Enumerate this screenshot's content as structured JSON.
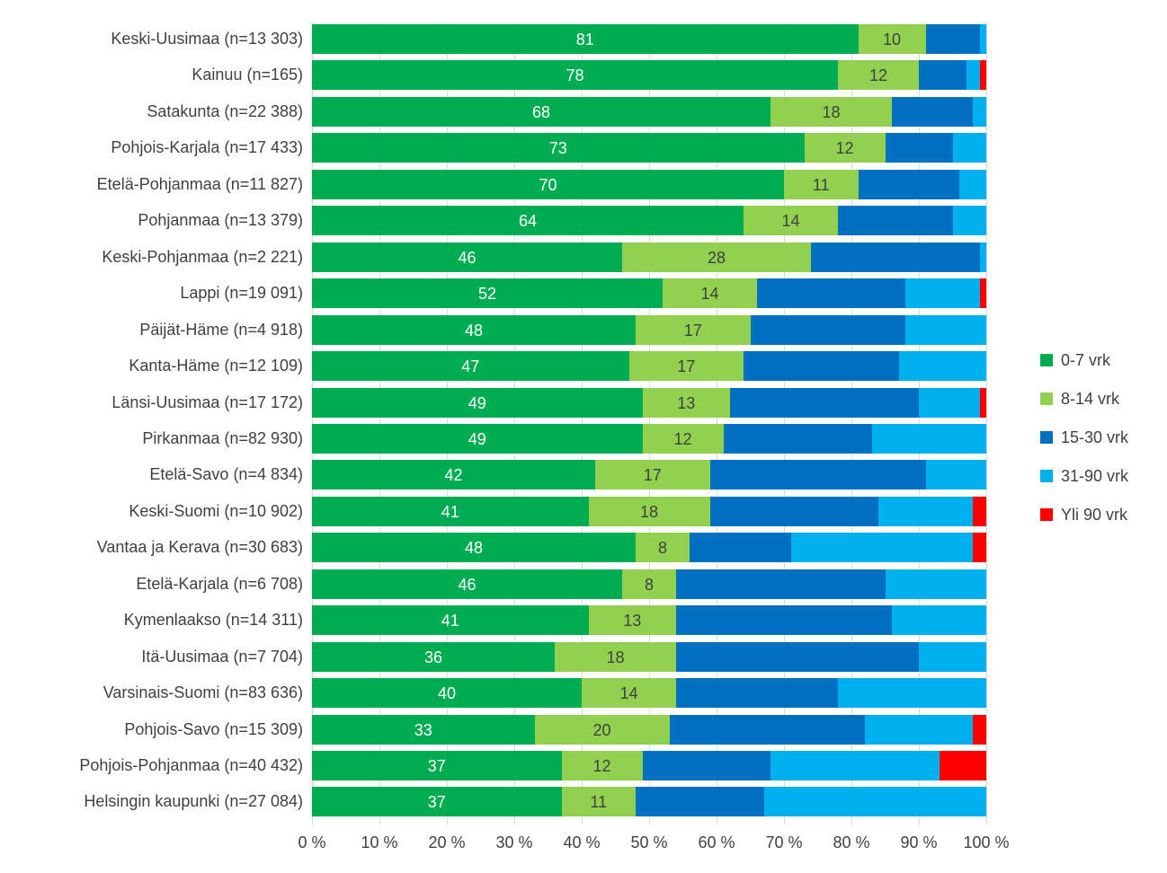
{
  "chart_data": {
    "type": "bar",
    "variant": "horizontal-stacked-100",
    "title": "",
    "xlabel": "",
    "ylabel": "",
    "x_axis": {
      "min": 0,
      "max": 100,
      "tick_labels": [
        "0 %",
        "10 %",
        "20 %",
        "30 %",
        "40 %",
        "50 %",
        "60 %",
        "70 %",
        "80 %",
        "90 %",
        "100 %"
      ]
    },
    "grid": true,
    "legend_position": "right",
    "categories": [
      "Keski-Uusimaa (n=13 303)",
      "Kainuu (n=165)",
      "Satakunta (n=22 388)",
      "Pohjois-Karjala (n=17 433)",
      "Etelä-Pohjanmaa (n=11 827)",
      "Pohjanmaa (n=13 379)",
      "Keski-Pohjanmaa (n=2 221)",
      "Lappi (n=19 091)",
      "Päijät-Häme (n=4 918)",
      "Kanta-Häme (n=12 109)",
      "Länsi-Uusimaa (n=17 172)",
      "Pirkanmaa (n=82 930)",
      "Etelä-Savo (n=4 834)",
      "Keski-Suomi (n=10 902)",
      "Vantaa ja Kerava (n=30 683)",
      "Etelä-Karjala (n=6 708)",
      "Kymenlaakso (n=14 311)",
      "Itä-Uusimaa (n=7 704)",
      "Varsinais-Suomi (n=83 636)",
      "Pohjois-Savo (n=15 309)",
      "Pohjois-Pohjanmaa (n=40 432)",
      "Helsingin kaupunki (n=27 084)"
    ],
    "series": [
      {
        "name": "0-7 vrk",
        "color": "#00AC52",
        "label_color": "#ffffff",
        "labels_shown": true,
        "values": [
          81,
          78,
          68,
          73,
          70,
          64,
          46,
          52,
          48,
          47,
          49,
          49,
          42,
          41,
          48,
          46,
          41,
          36,
          40,
          33,
          37,
          37
        ]
      },
      {
        "name": "8-14 vrk",
        "color": "#92D050",
        "label_color": "#404040",
        "labels_shown": true,
        "values": [
          10,
          12,
          18,
          12,
          11,
          14,
          28,
          14,
          17,
          17,
          13,
          12,
          17,
          18,
          8,
          8,
          13,
          18,
          14,
          20,
          12,
          11
        ]
      },
      {
        "name": "15-30 vrk",
        "color": "#0070C0",
        "label_color": "#ffffff",
        "labels_shown": false,
        "values": [
          8,
          7,
          12,
          10,
          15,
          17,
          25,
          22,
          23,
          23,
          28,
          22,
          32,
          25,
          15,
          31,
          32,
          36,
          24,
          29,
          19,
          19
        ]
      },
      {
        "name": "31-90 vrk",
        "color": "#00B0F0",
        "label_color": "#ffffff",
        "labels_shown": false,
        "values": [
          1,
          2,
          2,
          5,
          4,
          5,
          1,
          11,
          12,
          13,
          9,
          17,
          9,
          14,
          27,
          15,
          14,
          10,
          22,
          16,
          25,
          33
        ]
      },
      {
        "name": "Yli 90 vrk",
        "color": "#FF0000",
        "label_color": "#ffffff",
        "labels_shown": false,
        "values": [
          0,
          1,
          0,
          0,
          0,
          0,
          0,
          1,
          0,
          0,
          1,
          0,
          0,
          2,
          2,
          0,
          0,
          0,
          0,
          2,
          7,
          0
        ]
      }
    ]
  },
  "colors": {
    "gridline": "#d9d9d9",
    "text": "#404040",
    "background": "#ffffff"
  }
}
